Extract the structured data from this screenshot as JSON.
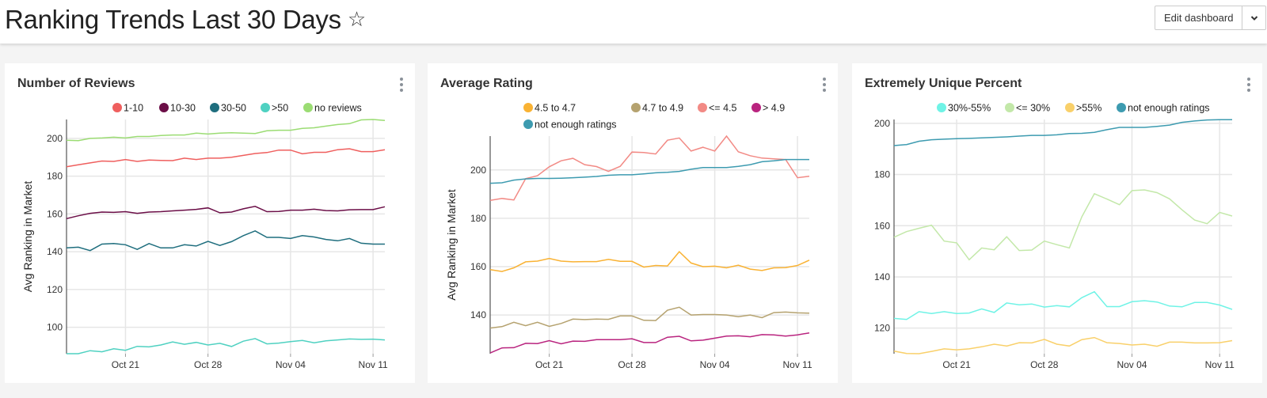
{
  "header": {
    "title": "Ranking Trends Last 30 Days",
    "favorite_icon": "star-outline-icon",
    "edit_button_label": "Edit dashboard",
    "dropdown_icon": "chevron-down-icon"
  },
  "chart_data": [
    {
      "type": "line",
      "title": "Number of Reviews",
      "ylabel": "Avg Ranking in Market",
      "xlabel": "",
      "x_start": "Oct 16",
      "x_end": "Nov 12",
      "xticks": [
        "Oct 21",
        "Oct 28",
        "Nov 04",
        "Nov 11"
      ],
      "yticks": [
        100,
        120,
        140,
        160,
        180,
        200
      ],
      "ylim": [
        86,
        210
      ],
      "grid": true,
      "legend": "top",
      "series": [
        {
          "name": "1-10",
          "color": "#ef5f5e",
          "values": [
            185,
            186,
            187,
            188,
            187.8,
            188.8,
            187.8,
            188.5,
            188.3,
            188.2,
            189.5,
            188.8,
            189.5,
            189.5,
            190,
            191,
            192,
            192.5,
            193.8,
            193.8,
            191.8,
            192.6,
            192.6,
            194,
            194.5,
            193,
            193,
            194
          ]
        },
        {
          "name": "10-30",
          "color": "#6b0e47",
          "values": [
            157.5,
            159,
            160.3,
            161,
            160.8,
            161.2,
            160.3,
            161,
            161.2,
            161.6,
            162,
            162.4,
            163.2,
            160.6,
            161,
            162.7,
            164,
            161.2,
            161.3,
            162,
            162,
            162.5,
            161.8,
            161.6,
            162.2,
            162.3,
            162.3,
            163.8
          ]
        },
        {
          "name": "30-50",
          "color": "#1f6e7e",
          "values": [
            142,
            142.4,
            140.6,
            144,
            144.3,
            143.7,
            141.2,
            144.3,
            142,
            142,
            143.7,
            143,
            145.5,
            143.3,
            145.3,
            148.5,
            151,
            147.6,
            147.6,
            147,
            148.5,
            147.8,
            146.5,
            145.8,
            147,
            144.5,
            144,
            144
          ]
        },
        {
          "name": ">50",
          "color": "#4fd1c1",
          "values": [
            86,
            86,
            87.6,
            87,
            88.6,
            87.8,
            89.9,
            89.6,
            90.6,
            92.2,
            91,
            92,
            90.6,
            91.5,
            89.8,
            92.6,
            94,
            91.2,
            91.6,
            92.4,
            93,
            91.8,
            92.8,
            93.3,
            93.8,
            93.6,
            93.7,
            93.3
          ]
        },
        {
          "name": "no reviews",
          "color": "#9bdc73",
          "values": [
            199,
            198.8,
            200,
            200.2,
            200.6,
            200.2,
            201,
            201,
            201.5,
            201.8,
            201.8,
            202.8,
            202.3,
            202.8,
            203,
            202.8,
            202.6,
            204,
            204.3,
            204.3,
            205.3,
            205.6,
            206.5,
            207.3,
            207.8,
            209.8,
            210,
            209.5
          ]
        }
      ]
    },
    {
      "type": "line",
      "title": "Average Rating",
      "ylabel": "Avg Ranking in Market",
      "xlabel": "",
      "x_start": "Oct 16",
      "x_end": "Nov 12",
      "xticks": [
        "Oct 21",
        "Oct 28",
        "Nov 04",
        "Nov 11"
      ],
      "yticks": [
        140,
        160,
        180,
        200
      ],
      "ylim": [
        124,
        214
      ],
      "grid": true,
      "legend": "top",
      "series": [
        {
          "name": "4.5 to 4.7",
          "color": "#f9b233",
          "values": [
            158.8,
            158,
            159.5,
            162,
            162.3,
            163.4,
            162.3,
            162,
            162.1,
            162.1,
            163,
            162.2,
            162.2,
            159.8,
            160.5,
            160.3,
            166.2,
            161.5,
            160,
            160.2,
            159.5,
            160.6,
            159,
            158.4,
            159.5,
            159.6,
            160.5,
            162.7
          ]
        },
        {
          "name": "4.7 to 4.9",
          "color": "#b5a26f",
          "values": [
            134.6,
            135.2,
            137,
            135.6,
            137,
            135.3,
            136.5,
            138.3,
            138.1,
            138.3,
            138.2,
            139.6,
            139.6,
            137.8,
            137.7,
            142,
            143.2,
            140,
            140.2,
            140.2,
            140,
            139.3,
            140,
            138.9,
            141,
            141.2,
            140.9,
            140.8
          ]
        },
        {
          "name": "<= 4.5",
          "color": "#f28a85",
          "values": [
            187.4,
            188.2,
            187.6,
            196.4,
            197.6,
            201.3,
            203.8,
            204.8,
            202.2,
            201.4,
            199.4,
            201.5,
            207.4,
            207.2,
            206.6,
            212.3,
            213.2,
            207.8,
            209.4,
            207.8,
            214,
            207.5,
            205.9,
            204.9,
            204.6,
            204.3,
            196.8,
            197.4
          ]
        },
        {
          "name": "> 4.9",
          "color": "#b9247f",
          "values": [
            124.3,
            126.4,
            126.5,
            128.3,
            128.2,
            129.4,
            128.1,
            129.2,
            129.1,
            129.8,
            129.8,
            129.8,
            130.2,
            128.6,
            128.6,
            130.8,
            131.2,
            129.3,
            129.6,
            130.4,
            131.3,
            131.4,
            131,
            131.9,
            131.8,
            131.3,
            131.8,
            132.6
          ]
        },
        {
          "name": "not enough ratings",
          "color": "#3d9bb0",
          "values": [
            194.5,
            194.7,
            195.8,
            196.3,
            196.5,
            196.5,
            196.6,
            196.8,
            197,
            197.3,
            197.8,
            198,
            198,
            198.4,
            198.8,
            199,
            199.4,
            200.3,
            201,
            201,
            201,
            201.5,
            202.2,
            203.4,
            203.8,
            204.3,
            204.3,
            204.3
          ]
        }
      ]
    },
    {
      "type": "line",
      "title": "Extremely Unique Percent",
      "ylabel": "",
      "xlabel": "",
      "x_start": "Oct 16",
      "x_end": "Nov 12",
      "xticks": [
        "Oct 21",
        "Oct 28",
        "Nov 04",
        "Nov 11"
      ],
      "yticks": [
        120,
        140,
        160,
        180,
        200
      ],
      "ylim": [
        110,
        201.5
      ],
      "grid": true,
      "legend": "top",
      "series": [
        {
          "name": "30%-55%",
          "color": "#6ff3e6",
          "values": [
            123.8,
            123.4,
            126.4,
            125.7,
            126.4,
            125.7,
            125.9,
            127.5,
            126.1,
            129.8,
            129.1,
            129.4,
            128.2,
            128.8,
            128.3,
            131.9,
            134.2,
            128.4,
            128.4,
            130.3,
            130.7,
            130.2,
            128.6,
            128.3,
            130,
            130,
            129,
            127.3
          ]
        },
        {
          "name": "<= 30%",
          "color": "#c3e8a9",
          "values": [
            155.5,
            157.7,
            159,
            160.2,
            154,
            153.3,
            146.7,
            151.3,
            150.6,
            155.7,
            150.3,
            150.5,
            154,
            152.6,
            151.3,
            163.5,
            172.5,
            170.4,
            168.2,
            173.7,
            174,
            172.9,
            170.5,
            166.2,
            162.2,
            160.8,
            165.2,
            163.8
          ]
        },
        {
          "name": ">55%",
          "color": "#f9d06a",
          "values": [
            111,
            110.1,
            110,
            110.9,
            111.9,
            111.5,
            111.9,
            112.7,
            113.7,
            113,
            114.3,
            114.2,
            115.6,
            113.7,
            113,
            115.5,
            116.3,
            114.3,
            114,
            113.4,
            113.7,
            112.9,
            114.5,
            114.5,
            114.2,
            114.2,
            114.3,
            115.1
          ]
        },
        {
          "name": "not enough ratings",
          "color": "#3d9bb0",
          "values": [
            191.3,
            191.7,
            193,
            193.6,
            193.8,
            194,
            194.1,
            194.3,
            194.5,
            194.7,
            195,
            195.3,
            195.3,
            195.5,
            196,
            196.1,
            196.5,
            197.5,
            198.4,
            198.4,
            198.4,
            198.8,
            199.3,
            200.4,
            200.9,
            201.3,
            201.4,
            201.4
          ]
        }
      ]
    }
  ]
}
